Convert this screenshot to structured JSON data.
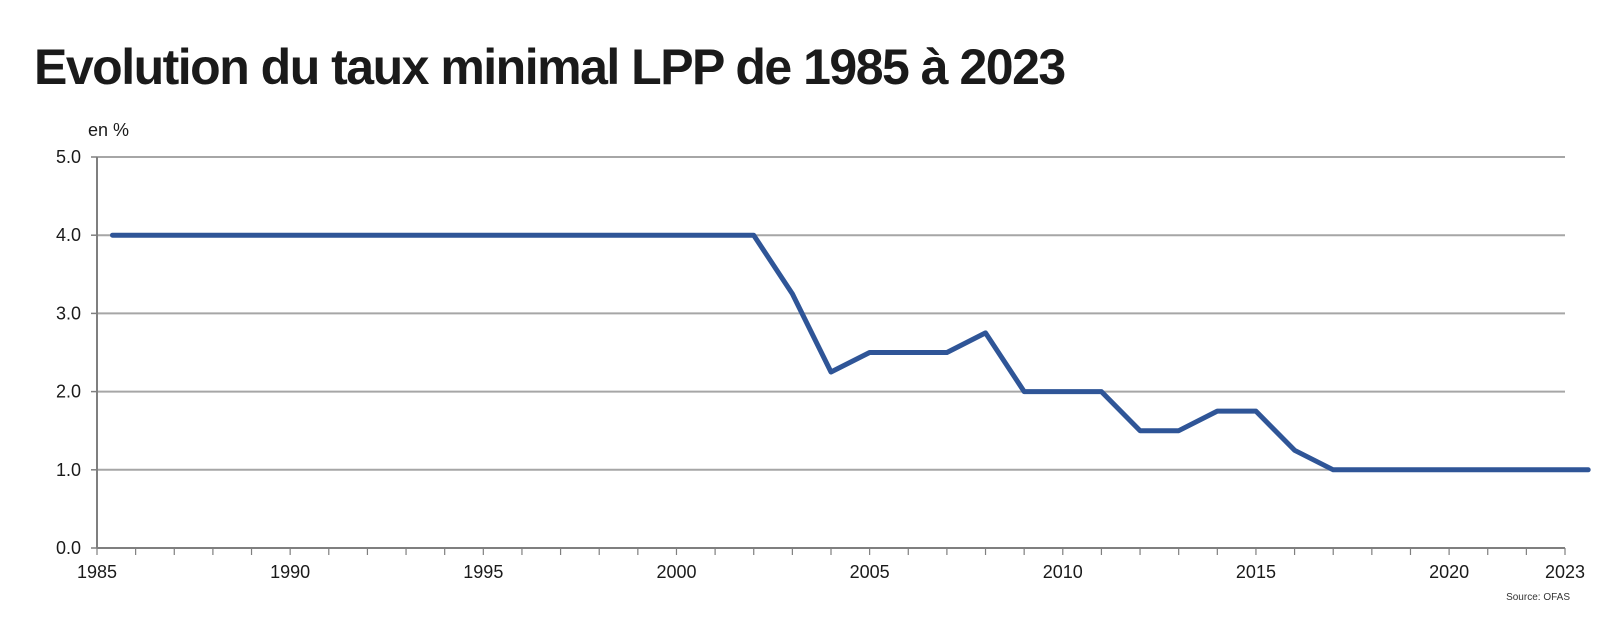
{
  "page": {
    "title": "Evolution du taux minimal LPP de 1985 à 2023"
  },
  "chart_data": {
    "type": "line",
    "title": "Evolution du taux minimal LPP de 1985 à 2023",
    "ylabel": "en %",
    "xlabel": "",
    "source": "Source: OFAS",
    "xlim": [
      1985,
      2023
    ],
    "ylim": [
      0,
      5
    ],
    "x_ticks": [
      1985,
      1990,
      1995,
      2000,
      2005,
      2010,
      2015,
      2020,
      2023
    ],
    "y_ticks": [
      "0.0",
      "1.0",
      "2.0",
      "3.0",
      "4.0",
      "5.0"
    ],
    "grid": "horizontal",
    "colors": {
      "line": "#2f5597",
      "grid": "#a6a6a6",
      "axis": "#7f7f7f"
    },
    "series": [
      {
        "x": [
          1985.4,
          2002,
          2003,
          2004,
          2005,
          2007,
          2008,
          2009,
          2011,
          2012,
          2013,
          2014,
          2015,
          2016,
          2017,
          2023.6
        ],
        "values": [
          4.0,
          4.0,
          3.25,
          2.25,
          2.5,
          2.5,
          2.75,
          2.0,
          2.0,
          1.5,
          1.5,
          1.75,
          1.75,
          1.25,
          1.0,
          1.0
        ]
      }
    ]
  }
}
